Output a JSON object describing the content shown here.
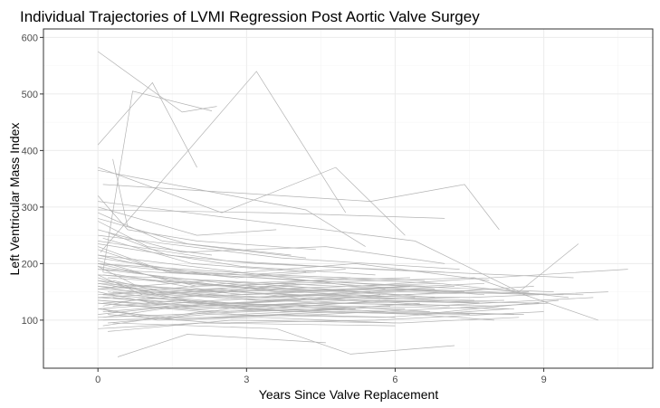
{
  "chart_data": {
    "type": "line",
    "title": "Individual Trajectories of LVMI Regression Post Aortic Valve Surgey",
    "xlabel": "Years Since Valve Replacement",
    "ylabel": "Left Ventricular Mass Index",
    "xlim": [
      -1.1,
      11.2
    ],
    "ylim": [
      15,
      615
    ],
    "x_ticks": [
      0,
      3,
      6,
      9
    ],
    "y_ticks": [
      100,
      200,
      300,
      400,
      500,
      600
    ],
    "x_tick_labels": [
      "0",
      "3",
      "6",
      "9"
    ],
    "y_tick_labels": [
      "100",
      "200",
      "300",
      "400",
      "500",
      "600"
    ],
    "grid": true,
    "line_color": "#b3b3b3",
    "series": [
      {
        "x": [
          0.0,
          1.7,
          2.4
        ],
        "y": [
          575,
          468,
          478
        ]
      },
      {
        "x": [
          0.05,
          3.2,
          5.0
        ],
        "y": [
          220,
          540,
          290
        ]
      },
      {
        "x": [
          0.1,
          0.7,
          2.3
        ],
        "y": [
          185,
          505,
          470
        ]
      },
      {
        "x": [
          0.0,
          1.1,
          2.0
        ],
        "y": [
          410,
          520,
          370
        ]
      },
      {
        "x": [
          0.3,
          0.6
        ],
        "y": [
          385,
          265
        ]
      },
      {
        "x": [
          0.0,
          2.5,
          4.8,
          6.2
        ],
        "y": [
          370,
          290,
          370,
          250
        ]
      },
      {
        "x": [
          0.0,
          4.2,
          5.4
        ],
        "y": [
          365,
          295,
          230
        ]
      },
      {
        "x": [
          0.0,
          3.4,
          7.0
        ],
        "y": [
          295,
          290,
          280
        ]
      },
      {
        "x": [
          0.1,
          5.5,
          7.4,
          8.1
        ],
        "y": [
          340,
          310,
          340,
          260
        ]
      },
      {
        "x": [
          0.0,
          6.4,
          8.5,
          9.7
        ],
        "y": [
          310,
          240,
          150,
          235
        ]
      },
      {
        "x": [
          0.0,
          5.2,
          10.7
        ],
        "y": [
          215,
          160,
          190
        ]
      },
      {
        "x": [
          0.0,
          2.0,
          7.6,
          10.1
        ],
        "y": [
          200,
          160,
          175,
          100
        ]
      },
      {
        "x": [
          0.3,
          3.6,
          5.1,
          7.2
        ],
        "y": [
          95,
          85,
          40,
          55
        ]
      },
      {
        "x": [
          0.4,
          1.8,
          4.6
        ],
        "y": [
          35,
          75,
          60
        ]
      },
      {
        "x": [
          0.0,
          2.6,
          5.8,
          8.9
        ],
        "y": [
          130,
          115,
          135,
          130
        ]
      },
      {
        "x": [
          0.2,
          3.0,
          6.5,
          9.3
        ],
        "y": [
          150,
          120,
          110,
          135
        ]
      },
      {
        "x": [
          0.0,
          1.5,
          4.0,
          7.8
        ],
        "y": [
          170,
          140,
          150,
          165
        ]
      },
      {
        "x": [
          0.0,
          2.2,
          5.0,
          8.4
        ],
        "y": [
          160,
          130,
          125,
          120
        ]
      },
      {
        "x": [
          0.1,
          1.2,
          3.3,
          6.0
        ],
        "y": [
          120,
          100,
          105,
          95
        ]
      },
      {
        "x": [
          0.0,
          2.8,
          4.4
        ],
        "y": [
          200,
          175,
          185
        ]
      },
      {
        "x": [
          0.0,
          1.9,
          3.9,
          6.8
        ],
        "y": [
          140,
          150,
          160,
          140
        ]
      },
      {
        "x": [
          0.2,
          2.4,
          5.6,
          9.0
        ],
        "y": [
          110,
          95,
          100,
          115
        ]
      },
      {
        "x": [
          0.0,
          3.7,
          7.3
        ],
        "y": [
          250,
          210,
          190
        ]
      },
      {
        "x": [
          0.0,
          0.9,
          2.7,
          5.3
        ],
        "y": [
          180,
          145,
          130,
          140
        ]
      },
      {
        "x": [
          0.1,
          2.1,
          4.9,
          8.0
        ],
        "y": [
          90,
          115,
          120,
          100
        ]
      },
      {
        "x": [
          0.0,
          1.4,
          4.1,
          6.6
        ],
        "y": [
          230,
          185,
          170,
          160
        ]
      },
      {
        "x": [
          0.0,
          2.9,
          6.1,
          9.8
        ],
        "y": [
          155,
          140,
          150,
          145
        ]
      },
      {
        "x": [
          0.3,
          1.6,
          3.8,
          7.5
        ],
        "y": [
          125,
          135,
          115,
          110
        ]
      },
      {
        "x": [
          0.0,
          1.0,
          2.3
        ],
        "y": [
          275,
          230,
          215
        ]
      },
      {
        "x": [
          0.0,
          3.1,
          5.9,
          8.7
        ],
        "y": [
          190,
          160,
          145,
          150
        ]
      },
      {
        "x": [
          0.1,
          1.3,
          4.3,
          7.1
        ],
        "y": [
          105,
          120,
          140,
          125
        ]
      },
      {
        "x": [
          0.0,
          2.6,
          6.3
        ],
        "y": [
          145,
          165,
          175
        ]
      },
      {
        "x": [
          0.2,
          3.5,
          6.9,
          9.5
        ],
        "y": [
          175,
          155,
          165,
          140
        ]
      },
      {
        "x": [
          0.0,
          1.8,
          4.7,
          8.2
        ],
        "y": [
          135,
          125,
          130,
          135
        ]
      },
      {
        "x": [
          0.0,
          2.0,
          3.6
        ],
        "y": [
          300,
          250,
          260
        ]
      },
      {
        "x": [
          0.1,
          4.5,
          9.1
        ],
        "y": [
          100,
          110,
          130
        ]
      },
      {
        "x": [
          0.0,
          1.1,
          3.2,
          5.7
        ],
        "y": [
          165,
          150,
          135,
          145
        ]
      },
      {
        "x": [
          0.0,
          2.3,
          5.2,
          7.9
        ],
        "y": [
          210,
          180,
          200,
          170
        ]
      },
      {
        "x": [
          0.2,
          1.5,
          3.0,
          6.2
        ],
        "y": [
          115,
          105,
          125,
          120
        ]
      },
      {
        "x": [
          0.0,
          3.9,
          8.6
        ],
        "y": [
          140,
          120,
          110
        ]
      },
      {
        "x": [
          0.0,
          0.8,
          2.5,
          4.0
        ],
        "y": [
          195,
          160,
          150,
          165
        ]
      },
      {
        "x": [
          0.1,
          2.7,
          5.4,
          8.8
        ],
        "y": [
          130,
          150,
          140,
          160
        ]
      },
      {
        "x": [
          0.0,
          1.7,
          4.6,
          7.0
        ],
        "y": [
          260,
          220,
          230,
          200
        ]
      },
      {
        "x": [
          0.0,
          2.1,
          6.0
        ],
        "y": [
          85,
          95,
          90
        ]
      },
      {
        "x": [
          0.3,
          3.4,
          6.7,
          10.0
        ],
        "y": [
          150,
          135,
          125,
          140
        ]
      },
      {
        "x": [
          0.0,
          1.2,
          3.7,
          5.5
        ],
        "y": [
          175,
          145,
          155,
          150
        ]
      },
      {
        "x": [
          0.0,
          2.4,
          4.8,
          7.7
        ],
        "y": [
          120,
          135,
          145,
          130
        ]
      },
      {
        "x": [
          0.1,
          1.9,
          4.2
        ],
        "y": [
          245,
          200,
          185
        ]
      },
      {
        "x": [
          0.0,
          3.0,
          6.4,
          9.4
        ],
        "y": [
          160,
          140,
          155,
          145
        ]
      },
      {
        "x": [
          0.0,
          1.4,
          2.8,
          5.1
        ],
        "y": [
          205,
          170,
          160,
          175
        ]
      },
      {
        "x": [
          0.2,
          2.2,
          5.8,
          8.3
        ],
        "y": [
          95,
          110,
          105,
          120
        ]
      },
      {
        "x": [
          0.0,
          3.6,
          7.4
        ],
        "y": [
          180,
          165,
          150
        ]
      },
      {
        "x": [
          0.0,
          0.6,
          2.0,
          4.4
        ],
        "y": [
          320,
          260,
          240,
          225
        ]
      },
      {
        "x": [
          0.1,
          2.5,
          5.0,
          7.6
        ],
        "y": [
          145,
          130,
          140,
          135
        ]
      },
      {
        "x": [
          0.0,
          1.6,
          4.0,
          6.5
        ],
        "y": [
          110,
          125,
          115,
          130
        ]
      },
      {
        "x": [
          0.0,
          2.9,
          5.6
        ],
        "y": [
          235,
          195,
          180
        ]
      },
      {
        "x": [
          0.3,
          1.3,
          3.5,
          6.8
        ],
        "y": [
          170,
          150,
          140,
          155
        ]
      },
      {
        "x": [
          0.0,
          2.0,
          4.5,
          8.1
        ],
        "y": [
          135,
          120,
          130,
          125
        ]
      },
      {
        "x": [
          0.0,
          3.3,
          6.2,
          9.2
        ],
        "y": [
          190,
          175,
          160,
          150
        ]
      },
      {
        "x": [
          0.1,
          1.0,
          2.6,
          4.9
        ],
        "y": [
          125,
          140,
          130,
          120
        ]
      },
      {
        "x": [
          0.0,
          2.3,
          5.3,
          7.2
        ],
        "y": [
          155,
          170,
          150,
          160
        ]
      },
      {
        "x": [
          0.0,
          1.8,
          3.9
        ],
        "y": [
          280,
          235,
          215
        ]
      },
      {
        "x": [
          0.2,
          2.7,
          6.1,
          8.5
        ],
        "y": [
          80,
          100,
          95,
          105
        ]
      },
      {
        "x": [
          0.0,
          1.5,
          4.3,
          6.9
        ],
        "y": [
          215,
          185,
          175,
          165
        ]
      },
      {
        "x": [
          0.0,
          3.1,
          5.9
        ],
        "y": [
          105,
          115,
          125
        ]
      },
      {
        "x": [
          0.1,
          2.1,
          4.7,
          7.8
        ],
        "y": [
          185,
          155,
          165,
          145
        ]
      },
      {
        "x": [
          0.0,
          1.1,
          3.4,
          5.7
        ],
        "y": [
          150,
          130,
          120,
          135
        ]
      },
      {
        "x": [
          0.0,
          2.6,
          5.5,
          9.6
        ],
        "y": [
          240,
          205,
          190,
          175
        ]
      },
      {
        "x": [
          0.3,
          1.9,
          4.1
        ],
        "y": [
          140,
          125,
          135
        ]
      },
      {
        "x": [
          0.0,
          3.8,
          7.5,
          10.3
        ],
        "y": [
          165,
          145,
          140,
          150
        ]
      },
      {
        "x": [
          0.0,
          1.2,
          2.9,
          5.0
        ],
        "y": [
          225,
          190,
          180,
          190
        ]
      },
      {
        "x": [
          0.1,
          2.4,
          4.6,
          6.7
        ],
        "y": [
          115,
          130,
          125,
          115
        ]
      },
      {
        "x": [
          0.0,
          1.7,
          3.6,
          6.3
        ],
        "y": [
          195,
          170,
          150,
          160
        ]
      },
      {
        "x": [
          0.0,
          2.8,
          5.2
        ],
        "y": [
          130,
          110,
          120
        ]
      },
      {
        "x": [
          0.2,
          1.4,
          3.2,
          7.0
        ],
        "y": [
          255,
          215,
          200,
          185
        ]
      },
      {
        "x": [
          0.0,
          2.2,
          4.9,
          8.4
        ],
        "y": [
          100,
          105,
          115,
          110
        ]
      },
      {
        "x": [
          0.0,
          1.0,
          3.0,
          5.8
        ],
        "y": [
          170,
          160,
          145,
          155
        ]
      },
      {
        "x": [
          0.1,
          2.5,
          4.4,
          7.3
        ],
        "y": [
          145,
          155,
          135,
          140
        ]
      },
      {
        "x": [
          0.0,
          3.5,
          6.6
        ],
        "y": [
          200,
          180,
          170
        ]
      },
      {
        "x": [
          0.0,
          1.6,
          3.7,
          6.0
        ],
        "y": [
          120,
          100,
          110,
          105
        ]
      },
      {
        "x": [
          0.3,
          2.0,
          5.4,
          8.9
        ],
        "y": [
          160,
          150,
          155,
          145
        ]
      },
      {
        "x": [
          0.0,
          1.3,
          2.7,
          4.2
        ],
        "y": [
          290,
          240,
          225,
          210
        ]
      },
      {
        "x": [
          0.0,
          2.9,
          5.1,
          7.7
        ],
        "y": [
          140,
          125,
          135,
          130
        ]
      },
      {
        "x": [
          0.1,
          1.8,
          4.0,
          6.4
        ],
        "y": [
          180,
          165,
          150,
          140
        ]
      }
    ]
  }
}
